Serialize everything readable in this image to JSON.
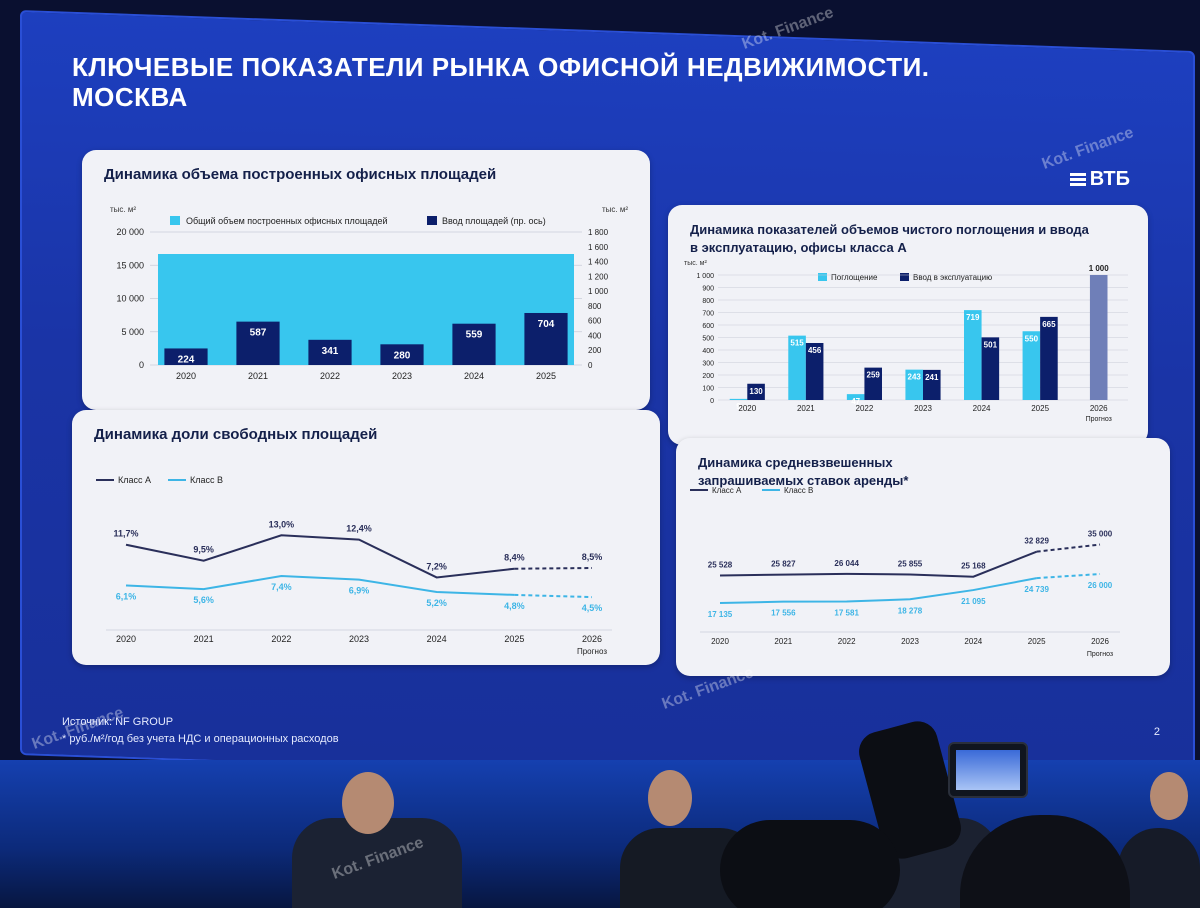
{
  "slide": {
    "title": "КЛЮЧЕВЫЕ ПОКАЗАТЕЛИ РЫНКА ОФИСНОЙ НЕДВИЖИМОСТИ. МОСКВА",
    "brand": "ВТБ",
    "source": "Источник: NF GROUP",
    "footnote": "* руб./м²/год без учета НДС и операционных расходов",
    "page": "2"
  },
  "charts": {
    "built": {
      "title": "Динамика объема построенных офисных площадей",
      "ylabel_left": "тыс. м²",
      "ylabel_right": "тыс. м²",
      "legend_total": "Общий объем построенных офисных площадей",
      "legend_input": "Ввод площадей (пр. ось)"
    },
    "absorption": {
      "title": "Динамика показателей объемов чистого поглощения и ввода в эксплуатацию, офисы класса А",
      "ylabel": "тыс. м²",
      "legend_absorption": "Поглощение",
      "legend_input": "Ввод в эксплуатацию",
      "forecast_label": "Прогноз"
    },
    "vacancy": {
      "title": "Динамика доли свободных площадей",
      "legend_a": "Класс А",
      "legend_b": "Класс В",
      "forecast_label": "Прогноз"
    },
    "rent": {
      "title": "Динамика средневзвешенных запрашиваемых ставок аренды*",
      "legend_a": "Класс А",
      "legend_b": "Класс В",
      "forecast_label": "Прогноз"
    }
  },
  "chart_data": [
    {
      "type": "bar",
      "title": "Динамика объема построенных офисных площадей",
      "categories": [
        "2020",
        "2021",
        "2022",
        "2023",
        "2024",
        "2025"
      ],
      "series": [
        {
          "name": "Ввод площадей (пр. ось)",
          "values": [
            224,
            587,
            341,
            280,
            559,
            704
          ]
        }
      ],
      "ylim": [
        0,
        20000
      ],
      "y2lim": [
        0,
        1800
      ],
      "y_ticks": [
        "0",
        "5 000",
        "10 000",
        "15 000",
        "20 000"
      ],
      "y2_ticks": [
        "0",
        "200",
        "400",
        "600",
        "800",
        "1 000",
        "1 200",
        "1 400",
        "1 600",
        "1 800"
      ],
      "ylabel": "тыс. м²",
      "legend": "top"
    },
    {
      "type": "bar",
      "title": "Динамика показателей объемов чистого поглощения и ввода в эксплуатацию, офисы класса А",
      "categories": [
        "2020",
        "2021",
        "2022",
        "2023",
        "2024",
        "2025",
        "2026"
      ],
      "series": [
        {
          "name": "Поглощение",
          "values": [
            9,
            515,
            47,
            243,
            719,
            550,
            null
          ]
        },
        {
          "name": "Ввод в эксплуатацию",
          "values": [
            130,
            456,
            259,
            241,
            501,
            665,
            1000
          ]
        }
      ],
      "y_ticks": [
        "0",
        "100",
        "200",
        "300",
        "400",
        "500",
        "600",
        "700",
        "800",
        "900",
        "1 000"
      ],
      "ylim": [
        0,
        1000
      ],
      "ylabel": "тыс. м²",
      "legend": "top"
    },
    {
      "type": "line",
      "title": "Динамика доли свободных площадей",
      "categories": [
        "2020",
        "2021",
        "2022",
        "2023",
        "2024",
        "2025",
        "2026"
      ],
      "series": [
        {
          "name": "Класс А",
          "values": [
            11.7,
            9.5,
            13.0,
            12.4,
            7.2,
            8.4,
            8.5
          ],
          "labels": [
            "11,7%",
            "9,5%",
            "13,0%",
            "12,4%",
            "7,2%",
            "8,4%",
            "8,5%"
          ]
        },
        {
          "name": "Класс В",
          "values": [
            6.1,
            5.6,
            7.4,
            6.9,
            5.2,
            4.8,
            4.5
          ],
          "labels": [
            "6,1%",
            "5,6%",
            "7,4%",
            "6,9%",
            "5,2%",
            "4,8%",
            "4,5%"
          ]
        }
      ],
      "legend": "top-left"
    },
    {
      "type": "line",
      "title": "Динамика средневзвешенных запрашиваемых ставок аренды*",
      "categories": [
        "2020",
        "2021",
        "2022",
        "2023",
        "2024",
        "2025",
        "2026"
      ],
      "series": [
        {
          "name": "Класс А",
          "values": [
            25528,
            25827,
            26044,
            25855,
            25168,
            32829,
            35000
          ],
          "labels": [
            "25 528",
            "25 827",
            "26 044",
            "25 855",
            "25 168",
            "32 829",
            "35 000"
          ]
        },
        {
          "name": "Класс В",
          "values": [
            17135,
            17556,
            17581,
            18278,
            21095,
            24739,
            26000
          ],
          "labels": [
            "17 135",
            "17 556",
            "17 581",
            "18 278",
            "21 095",
            "24 739",
            "26 000"
          ]
        }
      ],
      "legend": "top-left"
    }
  ],
  "watermark": {
    "text": "Kot. Finance"
  },
  "colors": {
    "screen": "#1a34a6",
    "card": "#f1f2f7",
    "navy": "#0c1f6b",
    "cyan": "#38c6ee",
    "line_a": "#2a2f5a",
    "line_b": "#3db5e6"
  }
}
